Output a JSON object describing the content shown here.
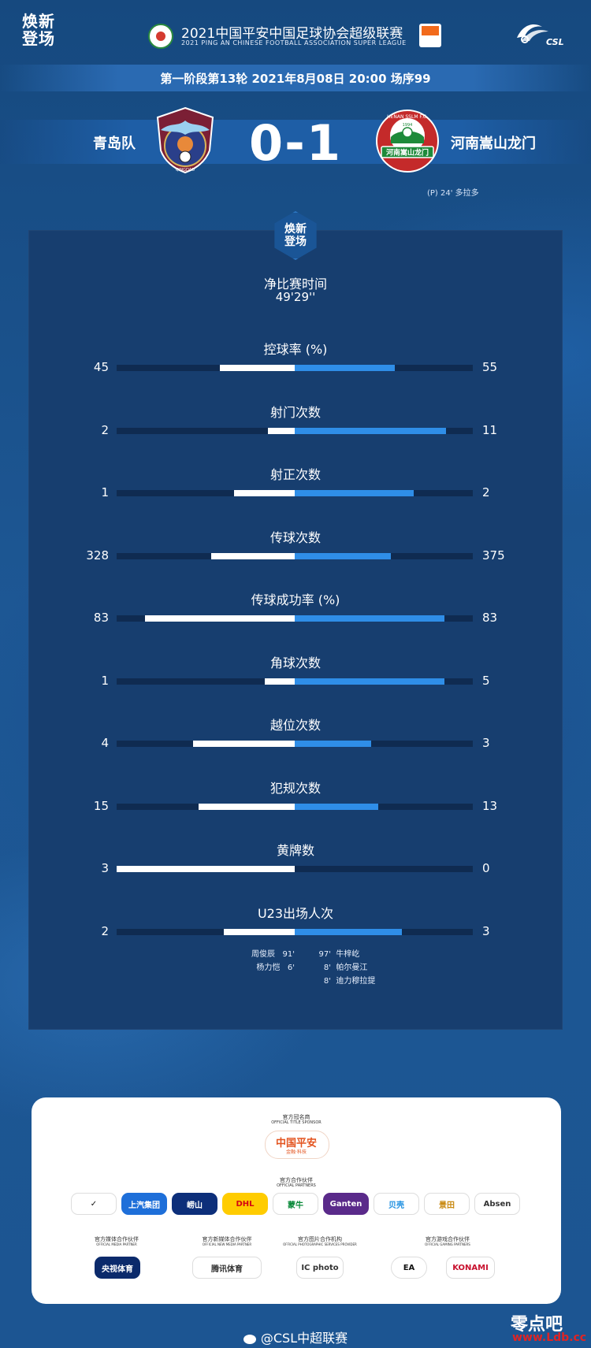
{
  "header": {
    "brand": "焕新登场",
    "league_title": "2021中国平安中国足球协会超级联赛",
    "league_subtitle": "2021 PING AN CHINESE FOOTBALL ASSOCIATION SUPER LEAGUE",
    "csl_text": "CSL"
  },
  "match": {
    "round_info": "第一阶段第13轮  2021年8月08日 20:00 场序99",
    "home_team": "青岛队",
    "away_team": "河南嵩山龙门",
    "score": "0-1",
    "goal_event": "(P)  24'   多拉多",
    "home_crest_label": "QINGDAO",
    "away_crest_text": "HENAN SSLM F.C.",
    "away_crest_year": "1994",
    "away_crest_name": "河南嵩山龙门"
  },
  "panel": {
    "badge": "焕新登场",
    "time_label": "净比赛时间",
    "time_value": "49'29''"
  },
  "stats": [
    {
      "label": "控球率 (%)",
      "home": 45,
      "away": 55
    },
    {
      "label": "射门次数",
      "home": 2,
      "away": 11
    },
    {
      "label": "射正次数",
      "home": 1,
      "away": 2
    },
    {
      "label": "传球次数",
      "home": 328,
      "away": 375
    },
    {
      "label": "传球成功率 (%)",
      "home": 83,
      "away": 83
    },
    {
      "label": "角球次数",
      "home": 1,
      "away": 5
    },
    {
      "label": "越位次数",
      "home": 4,
      "away": 3
    },
    {
      "label": "犯规次数",
      "home": 15,
      "away": 13
    },
    {
      "label": "黄牌数",
      "home": 3,
      "away": 0
    },
    {
      "label": "U23出场人次",
      "home": 2,
      "away": 3
    }
  ],
  "bar_levels": [
    {
      "home": 0.42,
      "away": 0.56
    },
    {
      "home": 0.15,
      "away": 0.85
    },
    {
      "home": 0.34,
      "away": 0.67
    },
    {
      "home": 0.47,
      "away": 0.54
    },
    {
      "home": 0.84,
      "away": 0.84
    },
    {
      "home": 0.17,
      "away": 0.84
    },
    {
      "home": 0.57,
      "away": 0.43
    },
    {
      "home": 0.54,
      "away": 0.47
    },
    {
      "home": 1.0,
      "away": 0.0
    },
    {
      "home": 0.4,
      "away": 0.6
    }
  ],
  "u23": {
    "home_players": [
      {
        "name": "周俊辰",
        "minute": "91'"
      },
      {
        "name": "杨力恺",
        "minute": "6'"
      }
    ],
    "away_players": [
      {
        "minute": "97'",
        "name": "牛梓屹"
      },
      {
        "minute": "8'",
        "name": "帕尔曼江"
      },
      {
        "minute": "8'",
        "name": "迪力穆拉提"
      }
    ]
  },
  "sponsors": {
    "title_caption": "官方冠名商",
    "title_caption_en": "OFFICIAL TITLE SPONSOR",
    "title_sponsor": "中国平安",
    "title_sponsor_sub": "金融·科技",
    "partners_caption": "官方合作伙伴",
    "partners_caption_en": "OFFICIAL PARTNERS",
    "partners": [
      {
        "name": "✓",
        "bg": "#ffffff",
        "fg": "#111111",
        "border": "#dddddd"
      },
      {
        "name": "上汽集团",
        "bg": "#1e6fd9",
        "fg": "#ffffff",
        "border": "#1e6fd9"
      },
      {
        "name": "崂山",
        "bg": "#0d2f7a",
        "fg": "#ffffff",
        "border": "#0d2f7a"
      },
      {
        "name": "DHL",
        "bg": "#ffcc00",
        "fg": "#d40511",
        "border": "#ffcc00"
      },
      {
        "name": "蒙牛",
        "bg": "#ffffff",
        "fg": "#0a8a3a",
        "border": "#dddddd"
      },
      {
        "name": "Ganten",
        "bg": "#5a2a8a",
        "fg": "#ffffff",
        "border": "#5a2a8a"
      },
      {
        "name": "贝壳",
        "bg": "#ffffff",
        "fg": "#1b8ee0",
        "border": "#dddddd"
      },
      {
        "name": "景田",
        "bg": "#ffffff",
        "fg": "#c98a12",
        "border": "#dddddd"
      },
      {
        "name": "Absen",
        "bg": "#ffffff",
        "fg": "#333333",
        "border": "#dddddd"
      }
    ],
    "media_caption": "官方媒体合作伙伴",
    "media_caption_en": "OFFICIAL MEDIA PARTNER",
    "media": "央视体育",
    "newmedia_caption": "官方新媒体合作伙伴",
    "newmedia_caption_en": "OFFICIAL NEW MEDIA PARTNER",
    "newmedia": "腾讯体育",
    "photo_caption": "官方图片合作机构",
    "photo_caption_en": "OFFICIAL PHOTOGRAPHIC SERVICES PROVIDER",
    "photo": "IC photo",
    "gaming_caption": "官方游戏合作伙伴",
    "gaming_caption_en": "OFFICIAL GAMING PARTNERS",
    "gaming": [
      "EA",
      "KONAMI"
    ]
  },
  "footer": {
    "handle": "@CSL中超联赛",
    "watermark": "零点吧",
    "watermark_url": "www.Ldb.cc"
  },
  "colors": {
    "home_bar": "#ffffff",
    "away_bar": "#2f8ee8",
    "panel": "#173e6f",
    "background": "#1b4f8a"
  }
}
